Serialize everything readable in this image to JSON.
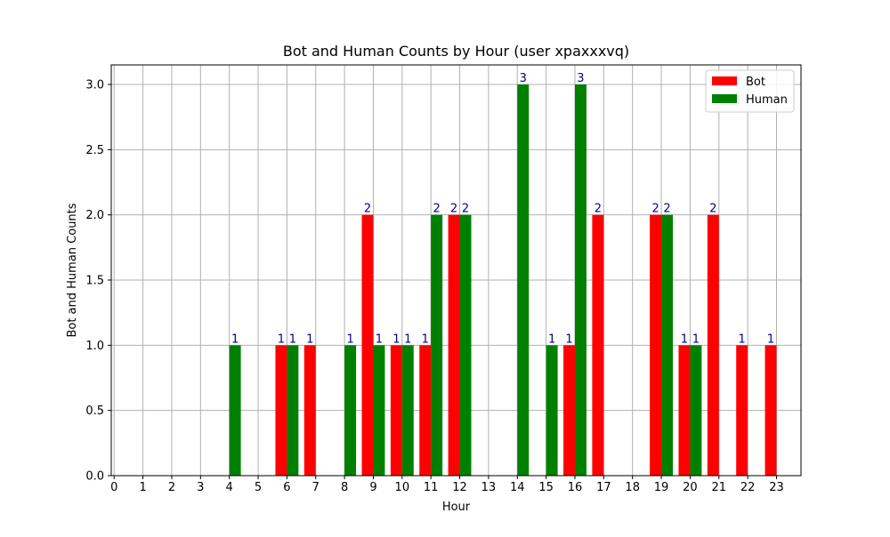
{
  "chart_data": {
    "type": "bar",
    "title": "Bot and Human Counts by Hour (user xpaxxxvq)",
    "xlabel": "Hour",
    "ylabel": "Bot and Human Counts",
    "x": [
      0,
      1,
      2,
      3,
      4,
      5,
      6,
      7,
      8,
      9,
      10,
      11,
      12,
      13,
      14,
      15,
      16,
      17,
      18,
      19,
      20,
      21,
      22,
      23
    ],
    "series": [
      {
        "name": "Bot",
        "color": "#ff0000",
        "values": [
          0,
          0,
          0,
          0,
          0,
          0,
          1,
          1,
          0,
          2,
          1,
          1,
          2,
          0,
          0,
          0,
          1,
          2,
          0,
          2,
          1,
          2,
          1,
          1
        ]
      },
      {
        "name": "Human",
        "color": "#008000",
        "values": [
          0,
          0,
          0,
          0,
          1,
          0,
          1,
          0,
          1,
          1,
          1,
          2,
          2,
          0,
          3,
          1,
          3,
          0,
          0,
          2,
          1,
          0,
          0,
          0
        ]
      }
    ],
    "ylim": [
      0,
      3.15
    ],
    "yticks": [
      "0.0",
      "0.5",
      "1.0",
      "1.5",
      "2.0",
      "2.5",
      "3.0"
    ],
    "grid": true,
    "legend_position": "top-right",
    "value_label_color": "#00008b"
  }
}
